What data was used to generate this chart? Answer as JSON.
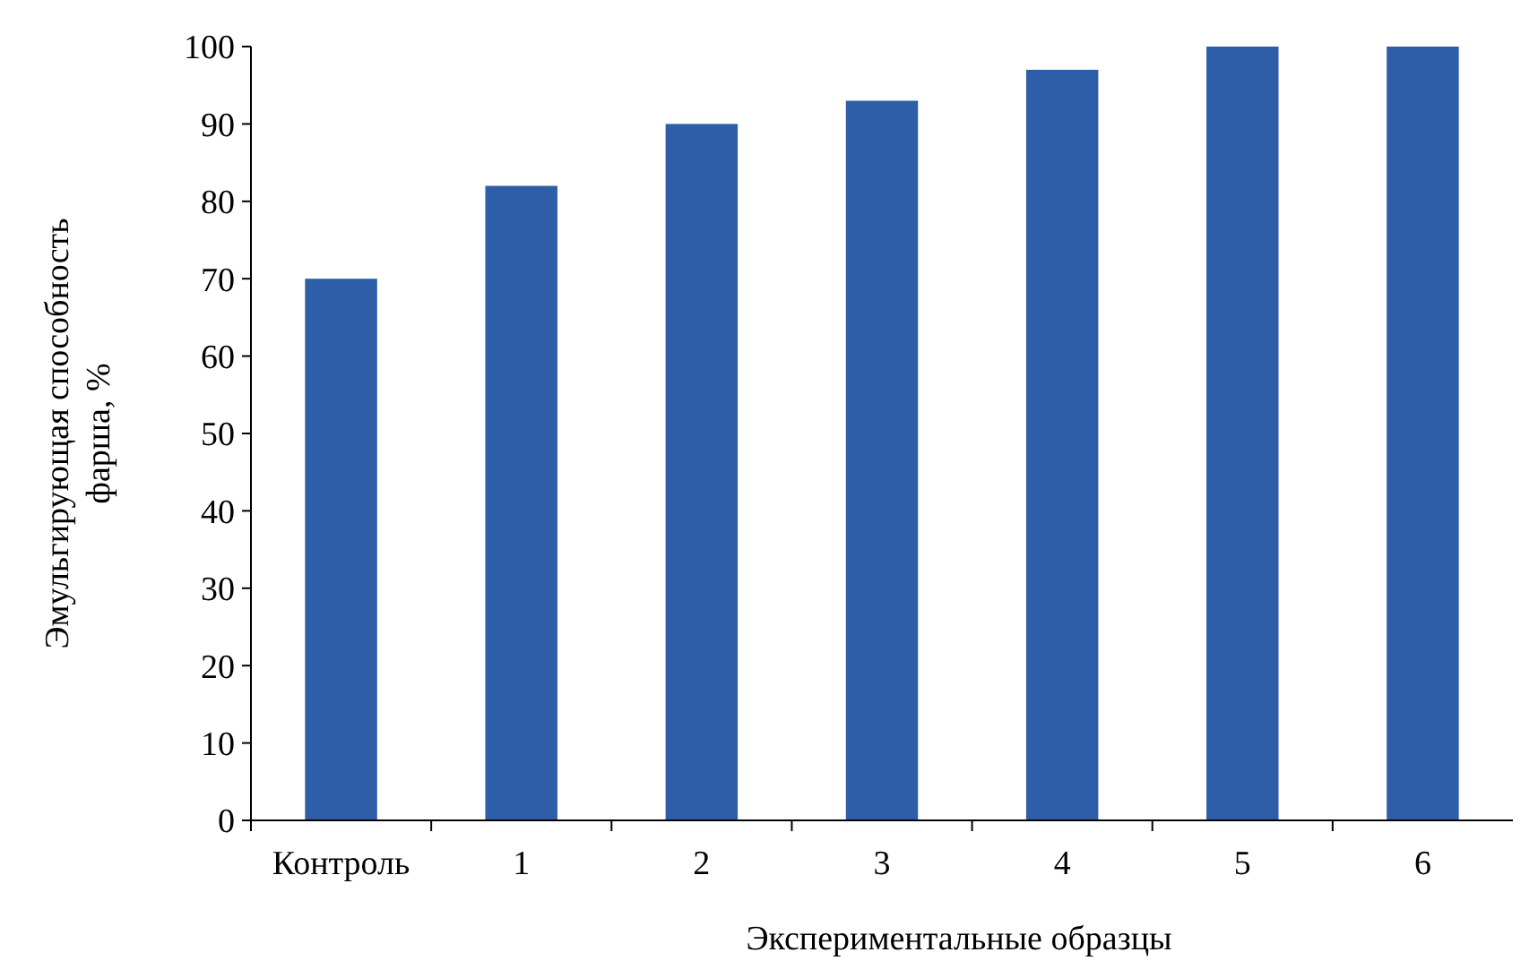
{
  "chart_data": {
    "type": "bar",
    "xlabel": "Экспериментальные образцы",
    "ylabel": "Эмульгирующая способность фарша, %",
    "categories": [
      "Контроль",
      "1",
      "2",
      "3",
      "4",
      "5",
      "6"
    ],
    "values": [
      70,
      82,
      90,
      93,
      97,
      100,
      100
    ],
    "color": "#2e5ea8",
    "ylim": [
      0,
      100
    ],
    "yticks": [
      0,
      10,
      20,
      30,
      40,
      50,
      60,
      70,
      80,
      90,
      100
    ],
    "grid": false
  }
}
